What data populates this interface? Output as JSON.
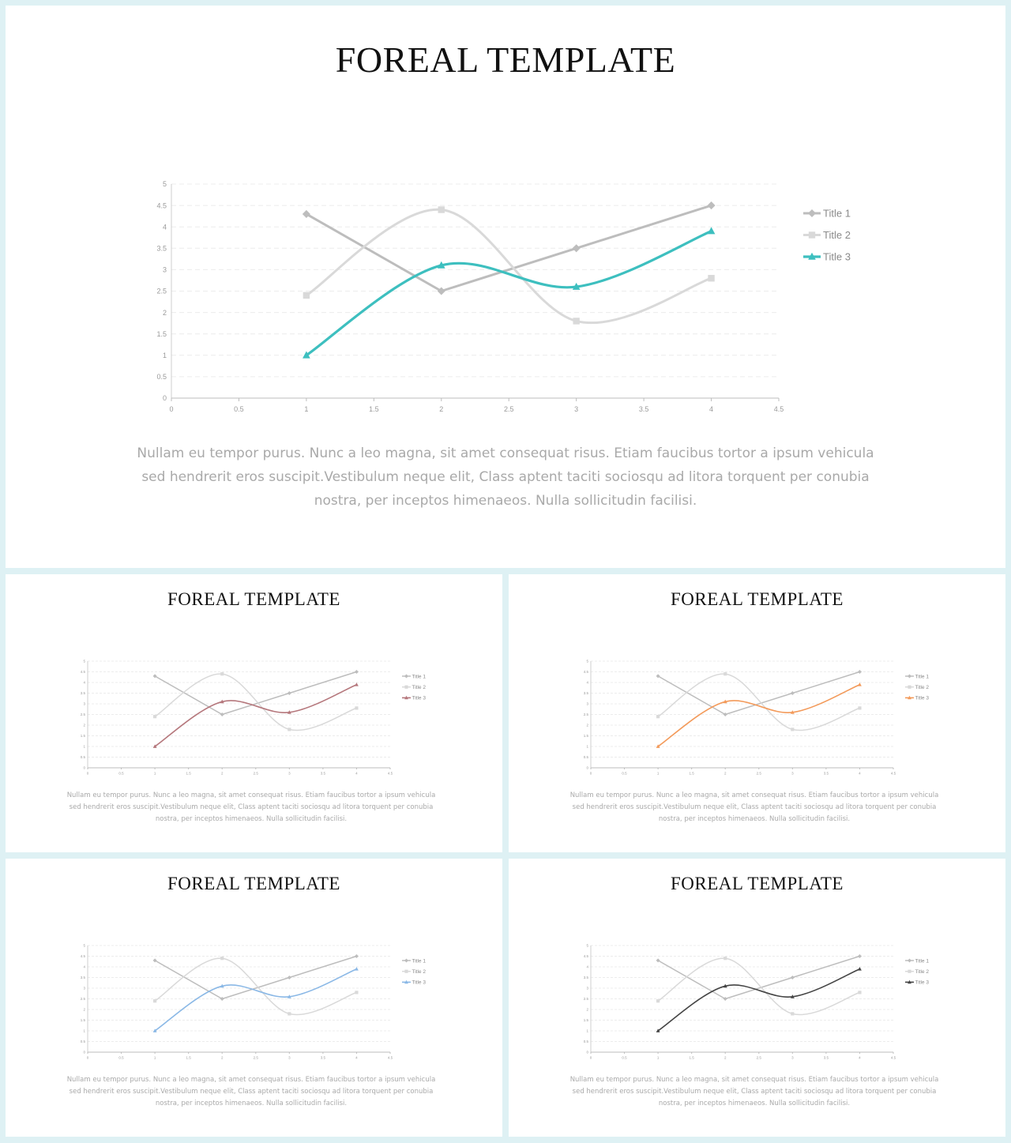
{
  "slides": [
    {
      "title": "FOREAL TEMPLATE",
      "text": "Nullam eu tempor purus. Nunc a leo magna, sit amet consequat risus. Etiam faucibus tortor a ipsum vehicula sed hendrerit eros suscipit.Vestibulum neque elit, Class aptent taciti sociosqu ad litora torquent per conubia nostra, per inceptos himenaeos. Nulla sollicitudin facilisi.",
      "accent_color": "#3dbfbf"
    },
    {
      "title": "FOREAL TEMPLATE",
      "text": "Nullam eu tempor purus. Nunc a leo magna, sit amet consequat risus. Etiam faucibus tortor a ipsum vehicula sed hendrerit eros suscipit.Vestibulum neque elit, Class aptent taciti sociosqu ad litora torquent per conubia nostra, per inceptos himenaeos. Nulla sollicitudin facilisi.",
      "accent_color": "#b5777c"
    },
    {
      "title": "FOREAL TEMPLATE",
      "text": "Nullam eu tempor purus. Nunc a leo magna, sit amet consequat risus. Etiam faucibus tortor a ipsum vehicula sed hendrerit eros suscipit.Vestibulum neque elit, Class aptent taciti sociosqu ad litora torquent per conubia nostra, per inceptos himenaeos. Nulla sollicitudin facilisi.",
      "accent_color": "#f39a5a"
    },
    {
      "title": "FOREAL TEMPLATE",
      "text": "Nullam eu tempor purus. Nunc a leo magna, sit amet consequat risus. Etiam faucibus tortor a ipsum vehicula sed hendrerit eros suscipit.Vestibulum neque elit, Class aptent taciti sociosqu ad litora torquent per conubia nostra, per inceptos himenaeos. Nulla sollicitudin facilisi.",
      "accent_color": "#8ab8e6"
    },
    {
      "title": "FOREAL TEMPLATE",
      "text": "Nullam eu tempor purus. Nunc a leo magna, sit amet consequat risus. Etiam faucibus tortor a ipsum vehicula sed hendrerit eros suscipit.Vestibulum neque elit, Class aptent taciti sociosqu ad litora torquent per conubia nostra, per inceptos himenaeos. Nulla sollicitudin facilisi.",
      "accent_color": "#444444"
    }
  ],
  "chart_data": {
    "type": "line",
    "smooth": true,
    "xlim": [
      0,
      4.5
    ],
    "ylim": [
      0,
      5
    ],
    "xticks": [
      "0",
      "0.5",
      "1",
      "1.5",
      "2",
      "2.5",
      "3",
      "3.5",
      "4",
      "4.5"
    ],
    "yticks": [
      "0",
      "0.5",
      "1",
      "1.5",
      "2",
      "2.5",
      "3",
      "3.5",
      "4",
      "4.5",
      "5"
    ],
    "grid": true,
    "legend_position": "right",
    "series": [
      {
        "name": "Title 1",
        "marker": "diamond",
        "color": "#bdbdbd",
        "x": [
          1,
          2,
          3,
          4
        ],
        "y": [
          4.3,
          2.5,
          3.5,
          4.5
        ]
      },
      {
        "name": "Title 2",
        "marker": "square",
        "color": "#d9d9d9",
        "x": [
          1,
          2,
          3,
          4
        ],
        "y": [
          2.4,
          4.4,
          1.8,
          2.8
        ]
      },
      {
        "name": "Title 3",
        "marker": "triangle",
        "color": "accent",
        "x": [
          1,
          2,
          3,
          4
        ],
        "y": [
          1.0,
          3.1,
          2.6,
          3.9
        ]
      }
    ]
  }
}
